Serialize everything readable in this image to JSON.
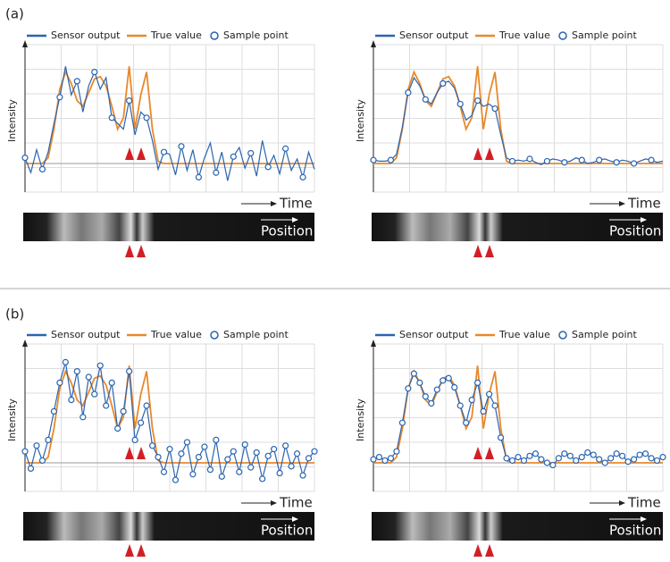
{
  "labels": [
    "(a)",
    "(b)"
  ],
  "chart_data": [
    {
      "type": "line",
      "y_label": "Intensity",
      "x_label": "Time",
      "strip_label": "Position",
      "ylim": [
        -25,
        100
      ],
      "xlim": [
        0,
        100
      ],
      "grid": true,
      "x": [
        0,
        2,
        4,
        6,
        8,
        10,
        12,
        14,
        16,
        18,
        20,
        22,
        24,
        26,
        28,
        30,
        32,
        34,
        36,
        38,
        40,
        42,
        44,
        46,
        48,
        50,
        52,
        54,
        56,
        58,
        60,
        62,
        64,
        66,
        68,
        70,
        72,
        74,
        76,
        78,
        80,
        82,
        84,
        86,
        88,
        90,
        92,
        94,
        96,
        98,
        100
      ],
      "series": [
        {
          "name": "Sensor output",
          "color": "#2a64b0",
          "mode": "lines",
          "values": [
            5,
            -8,
            12,
            -5,
            10,
            35,
            58,
            85,
            60,
            72,
            45,
            68,
            80,
            65,
            75,
            40,
            35,
            30,
            55,
            25,
            45,
            40,
            20,
            -5,
            10,
            8,
            -10,
            15,
            -6,
            12,
            -12,
            5,
            18,
            -8,
            10,
            -15,
            6,
            14,
            -4,
            9,
            -11,
            20,
            -3,
            7,
            -9,
            13,
            -6,
            4,
            -12,
            10,
            -5
          ]
        },
        {
          "name": "True value",
          "color": "#e8892b",
          "mode": "lines",
          "values": [
            0,
            0,
            0,
            0,
            5,
            30,
            65,
            80,
            70,
            55,
            50,
            62,
            74,
            76,
            68,
            50,
            30,
            40,
            85,
            30,
            60,
            80,
            30,
            2,
            0,
            0,
            0,
            0,
            0,
            0,
            0,
            0,
            0,
            0,
            0,
            0,
            0,
            0,
            0,
            0,
            0,
            0,
            0,
            0,
            0,
            0,
            0,
            0,
            0,
            0,
            0
          ]
        },
        {
          "name": "Sample point",
          "color": "#2a64b0",
          "mode": "markers",
          "values": [
            5,
            null,
            null,
            -5,
            null,
            null,
            58,
            null,
            null,
            72,
            null,
            null,
            80,
            null,
            null,
            40,
            null,
            null,
            55,
            null,
            null,
            40,
            null,
            null,
            10,
            null,
            null,
            15,
            null,
            null,
            -12,
            null,
            null,
            -8,
            null,
            null,
            6,
            null,
            null,
            9,
            null,
            null,
            -3,
            null,
            null,
            13,
            null,
            null,
            -12,
            null,
            null
          ]
        }
      ]
    },
    {
      "type": "line",
      "y_label": "Intensity",
      "x_label": "Time",
      "strip_label": "Position",
      "ylim": [
        -25,
        100
      ],
      "xlim": [
        0,
        100
      ],
      "grid": true,
      "x": [
        0,
        2,
        4,
        6,
        8,
        10,
        12,
        14,
        16,
        18,
        20,
        22,
        24,
        26,
        28,
        30,
        32,
        34,
        36,
        38,
        40,
        42,
        44,
        46,
        48,
        50,
        52,
        54,
        56,
        58,
        60,
        62,
        64,
        66,
        68,
        70,
        72,
        74,
        76,
        78,
        80,
        82,
        84,
        86,
        88,
        90,
        92,
        94,
        96,
        98,
        100
      ],
      "series": [
        {
          "name": "Sensor output",
          "color": "#2a64b0",
          "mode": "lines",
          "values": [
            3,
            2,
            2,
            3,
            8,
            32,
            62,
            75,
            68,
            56,
            52,
            62,
            70,
            72,
            66,
            52,
            38,
            42,
            55,
            50,
            52,
            48,
            25,
            5,
            2,
            3,
            2,
            4,
            1,
            -1,
            2,
            4,
            3,
            1,
            2,
            5,
            3,
            0,
            1,
            3,
            4,
            2,
            1,
            3,
            2,
            0,
            2,
            4,
            3,
            1,
            2
          ]
        },
        {
          "name": "True value",
          "color": "#e8892b",
          "mode": "lines",
          "values": [
            0,
            0,
            0,
            0,
            5,
            30,
            65,
            80,
            70,
            55,
            50,
            62,
            74,
            76,
            68,
            50,
            30,
            40,
            85,
            30,
            60,
            80,
            30,
            2,
            0,
            0,
            0,
            0,
            0,
            0,
            0,
            0,
            0,
            0,
            0,
            0,
            0,
            0,
            0,
            0,
            0,
            0,
            0,
            0,
            0,
            0,
            0,
            0,
            0,
            0,
            0
          ]
        },
        {
          "name": "Sample point",
          "color": "#2a64b0",
          "mode": "markers",
          "values": [
            3,
            null,
            null,
            3,
            null,
            null,
            62,
            null,
            null,
            56,
            null,
            null,
            70,
            null,
            null,
            52,
            null,
            null,
            55,
            null,
            null,
            48,
            null,
            null,
            2,
            null,
            null,
            4,
            null,
            null,
            2,
            null,
            null,
            1,
            null,
            null,
            3,
            null,
            null,
            3,
            null,
            null,
            1,
            null,
            null,
            0,
            null,
            null,
            3,
            null,
            null
          ]
        }
      ]
    },
    {
      "type": "line",
      "y_label": "Intensity",
      "x_label": "Time",
      "strip_label": "Position",
      "ylim": [
        -25,
        100
      ],
      "xlim": [
        0,
        100
      ],
      "grid": true,
      "x": [
        0,
        2,
        4,
        6,
        8,
        10,
        12,
        14,
        16,
        18,
        20,
        22,
        24,
        26,
        28,
        30,
        32,
        34,
        36,
        38,
        40,
        42,
        44,
        46,
        48,
        50,
        52,
        54,
        56,
        58,
        60,
        62,
        64,
        66,
        68,
        70,
        72,
        74,
        76,
        78,
        80,
        82,
        84,
        86,
        88,
        90,
        92,
        94,
        96,
        98,
        100
      ],
      "series": [
        {
          "name": "Sensor output",
          "color": "#2a64b0",
          "mode": "lines",
          "values": [
            10,
            -5,
            15,
            2,
            20,
            45,
            70,
            88,
            55,
            80,
            40,
            75,
            60,
            85,
            50,
            70,
            30,
            45,
            80,
            20,
            35,
            50,
            15,
            5,
            -8,
            12,
            -15,
            8,
            18,
            -10,
            5,
            14,
            -6,
            20,
            -12,
            3,
            10,
            -8,
            16,
            -4,
            9,
            -14,
            6,
            12,
            -9,
            15,
            -3,
            8,
            -11,
            4,
            10
          ]
        },
        {
          "name": "True value",
          "color": "#e8892b",
          "mode": "lines",
          "values": [
            0,
            0,
            0,
            0,
            5,
            30,
            65,
            80,
            70,
            55,
            50,
            62,
            74,
            76,
            68,
            50,
            30,
            40,
            85,
            30,
            60,
            80,
            30,
            2,
            0,
            0,
            0,
            0,
            0,
            0,
            0,
            0,
            0,
            0,
            0,
            0,
            0,
            0,
            0,
            0,
            0,
            0,
            0,
            0,
            0,
            0,
            0,
            0,
            0,
            0,
            0
          ]
        },
        {
          "name": "Sample point",
          "color": "#2a64b0",
          "mode": "markers",
          "values": [
            10,
            -5,
            15,
            2,
            20,
            45,
            70,
            88,
            55,
            80,
            40,
            75,
            60,
            85,
            50,
            70,
            30,
            45,
            80,
            20,
            35,
            50,
            15,
            5,
            -8,
            12,
            -15,
            8,
            18,
            -10,
            5,
            14,
            -6,
            20,
            -12,
            3,
            10,
            -8,
            16,
            -4,
            9,
            -14,
            6,
            12,
            -9,
            15,
            -3,
            8,
            -11,
            4,
            10
          ]
        }
      ]
    },
    {
      "type": "line",
      "y_label": "Intensity",
      "x_label": "Time",
      "strip_label": "Position",
      "ylim": [
        -25,
        100
      ],
      "xlim": [
        0,
        100
      ],
      "grid": true,
      "x": [
        0,
        2,
        4,
        6,
        8,
        10,
        12,
        14,
        16,
        18,
        20,
        22,
        24,
        26,
        28,
        30,
        32,
        34,
        36,
        38,
        40,
        42,
        44,
        46,
        48,
        50,
        52,
        54,
        56,
        58,
        60,
        62,
        64,
        66,
        68,
        70,
        72,
        74,
        76,
        78,
        80,
        82,
        84,
        86,
        88,
        90,
        92,
        94,
        96,
        98,
        100
      ],
      "series": [
        {
          "name": "Sensor output",
          "color": "#2a64b0",
          "mode": "lines",
          "values": [
            3,
            5,
            2,
            4,
            10,
            35,
            65,
            78,
            70,
            58,
            52,
            64,
            72,
            74,
            66,
            50,
            35,
            55,
            70,
            45,
            60,
            50,
            22,
            4,
            2,
            5,
            2,
            6,
            8,
            3,
            0,
            -2,
            4,
            8,
            6,
            2,
            5,
            9,
            7,
            3,
            0,
            4,
            8,
            6,
            1,
            3,
            7,
            8,
            4,
            2,
            5
          ]
        },
        {
          "name": "True value",
          "color": "#e8892b",
          "mode": "lines",
          "values": [
            0,
            0,
            0,
            0,
            5,
            30,
            65,
            80,
            70,
            55,
            50,
            62,
            74,
            76,
            68,
            50,
            30,
            40,
            85,
            30,
            60,
            80,
            30,
            2,
            0,
            0,
            0,
            0,
            0,
            0,
            0,
            0,
            0,
            0,
            0,
            0,
            0,
            0,
            0,
            0,
            0,
            0,
            0,
            0,
            0,
            0,
            0,
            0,
            0,
            0,
            0
          ]
        },
        {
          "name": "Sample point",
          "color": "#2a64b0",
          "mode": "markers",
          "values": [
            3,
            5,
            2,
            4,
            10,
            35,
            65,
            78,
            70,
            58,
            52,
            64,
            72,
            74,
            66,
            50,
            35,
            55,
            70,
            45,
            60,
            50,
            22,
            4,
            2,
            5,
            2,
            6,
            8,
            3,
            0,
            -2,
            4,
            8,
            6,
            2,
            5,
            9,
            7,
            3,
            0,
            4,
            8,
            6,
            1,
            3,
            7,
            8,
            4,
            2,
            5
          ]
        }
      ]
    }
  ]
}
